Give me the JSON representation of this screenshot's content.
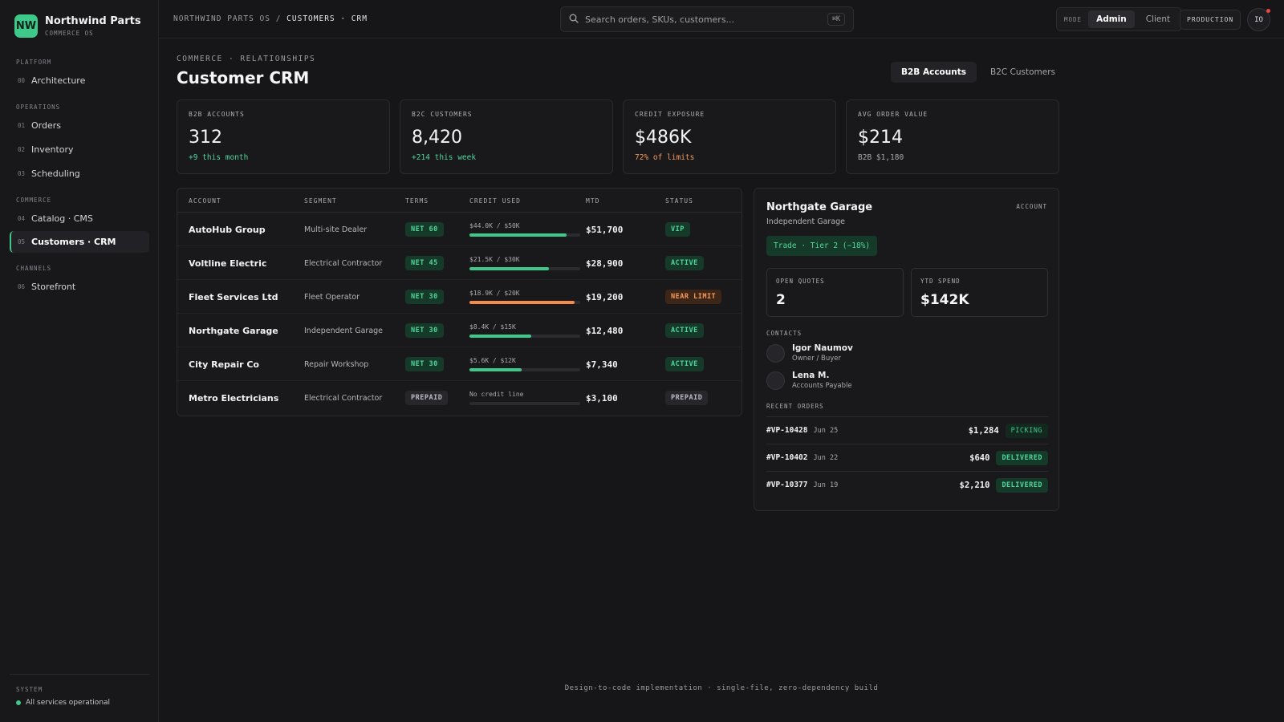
{
  "brand": {
    "logo": "NW",
    "name": "Northwind Parts",
    "sub": "COMMERCE OS"
  },
  "sidebar": {
    "groups": [
      {
        "label": "PLATFORM",
        "items": [
          {
            "idx": "00",
            "label": "Architecture"
          }
        ]
      },
      {
        "label": "OPERATIONS",
        "items": [
          {
            "idx": "01",
            "label": "Orders"
          },
          {
            "idx": "02",
            "label": "Inventory"
          },
          {
            "idx": "03",
            "label": "Scheduling"
          }
        ]
      },
      {
        "label": "COMMERCE",
        "items": [
          {
            "idx": "04",
            "label": "Catalog · CMS"
          },
          {
            "idx": "05",
            "label": "Customers · CRM",
            "active": true
          }
        ]
      },
      {
        "label": "CHANNELS",
        "items": [
          {
            "idx": "06",
            "label": "Storefront"
          }
        ]
      }
    ],
    "system_label": "SYSTEM",
    "system_status": "All services operational"
  },
  "topbar": {
    "crumb_root": "NORTHWIND PARTS OS",
    "crumb_sep": "/",
    "crumb_current": "CUSTOMERS · CRM",
    "search_placeholder": "Search orders, SKUs, customers...",
    "search_shortcut": "⌘K",
    "mode_label": "MODE",
    "mode_options": [
      "Admin",
      "Client"
    ],
    "mode_selected": "Admin",
    "environment": "PRODUCTION",
    "user_initials": "IO"
  },
  "header": {
    "eyebrow": "COMMERCE · RELATIONSHIPS",
    "title": "Customer CRM",
    "tabs": [
      "B2B Accounts",
      "B2C Customers"
    ],
    "active_tab": "B2B Accounts"
  },
  "kpis": [
    {
      "label": "B2B ACCOUNTS",
      "value": "312",
      "sub": "+9 this month",
      "tone": "green"
    },
    {
      "label": "B2C CUSTOMERS",
      "value": "8,420",
      "sub": "+214 this week",
      "tone": "green"
    },
    {
      "label": "CREDIT EXPOSURE",
      "value": "$486K",
      "sub": "72% of limits",
      "tone": "orange"
    },
    {
      "label": "AVG ORDER VALUE",
      "value": "$214",
      "sub": "B2B $1,180",
      "tone": "gray"
    }
  ],
  "table": {
    "headers": [
      "ACCOUNT",
      "SEGMENT",
      "TERMS",
      "CREDIT USED",
      "MTD",
      "STATUS"
    ],
    "rows": [
      {
        "account": "AutoHub Group",
        "segment": "Multi-site Dealer",
        "terms": "NET 60",
        "terms_tone": "green",
        "credit": "$44.0K / $50K",
        "credit_ratio": 0.88,
        "bar_color": "#3ec98a",
        "mtd": "$51,700",
        "status": "VIP",
        "status_tone": "green"
      },
      {
        "account": "Voltline Electric",
        "segment": "Electrical Contractor",
        "terms": "NET 45",
        "terms_tone": "green",
        "credit": "$21.5K / $30K",
        "credit_ratio": 0.717,
        "bar_color": "#3ec98a",
        "mtd": "$28,900",
        "status": "ACTIVE",
        "status_tone": "green"
      },
      {
        "account": "Fleet Services Ltd",
        "segment": "Fleet Operator",
        "terms": "NET 30",
        "terms_tone": "green",
        "credit": "$18.9K / $20K",
        "credit_ratio": 0.945,
        "bar_color": "#f58b4a",
        "mtd": "$19,200",
        "status": "NEAR LIMIT",
        "status_tone": "orange"
      },
      {
        "account": "Northgate Garage",
        "segment": "Independent Garage",
        "terms": "NET 30",
        "terms_tone": "green",
        "credit": "$8.4K / $15K",
        "credit_ratio": 0.56,
        "bar_color": "#3ec98a",
        "mtd": "$12,480",
        "status": "ACTIVE",
        "status_tone": "green"
      },
      {
        "account": "City Repair Co",
        "segment": "Repair Workshop",
        "terms": "NET 30",
        "terms_tone": "green",
        "credit": "$5.6K / $12K",
        "credit_ratio": 0.467,
        "bar_color": "#3ec98a",
        "mtd": "$7,340",
        "status": "ACTIVE",
        "status_tone": "green"
      },
      {
        "account": "Metro Electricians",
        "segment": "Electrical Contractor",
        "terms": "PREPAID",
        "terms_tone": "gray",
        "credit": "No credit line",
        "credit_ratio": 0,
        "bar_color": "#3ec98a",
        "mtd": "$3,100",
        "status": "PREPAID",
        "status_tone": "gray"
      }
    ]
  },
  "detail": {
    "name": "Northgate Garage",
    "type": "Independent Garage",
    "tag": "ACCOUNT",
    "tier": "Trade · Tier 2 (−18%)",
    "open_quotes_label": "OPEN QUOTES",
    "open_quotes": "2",
    "ytd_label": "YTD SPEND",
    "ytd": "$142K",
    "contacts_label": "CONTACTS",
    "contacts": [
      {
        "name": "Igor Naumov",
        "role": "Owner / Buyer"
      },
      {
        "name": "Lena M.",
        "role": "Accounts Payable"
      }
    ],
    "orders_label": "RECENT ORDERS",
    "orders": [
      {
        "id": "#VP-10428",
        "date": "Jun 25",
        "amount": "$1,284",
        "status": "PICKING",
        "tone": "green-dark"
      },
      {
        "id": "#VP-10402",
        "date": "Jun 22",
        "amount": "$640",
        "status": "DELIVERED",
        "tone": "green"
      },
      {
        "id": "#VP-10377",
        "date": "Jun 19",
        "amount": "$2,210",
        "status": "DELIVERED",
        "tone": "green"
      }
    ]
  },
  "footer": "Design-to-code implementation · single-file, zero-dependency build",
  "colors": {
    "accent": "#3ec98a",
    "warning": "#f58b4a",
    "background": "#161618",
    "panel": "#19191c"
  }
}
